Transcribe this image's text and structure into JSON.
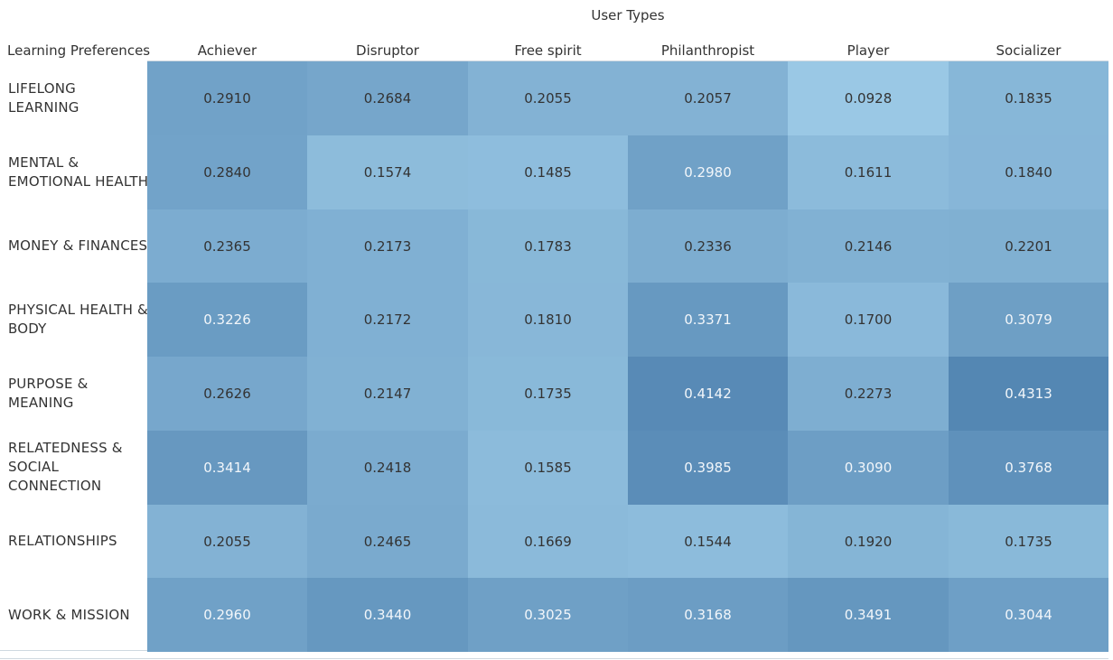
{
  "chart_data": {
    "type": "heatmap",
    "column_title": "User Types",
    "row_title": "Learning Preferences",
    "columns": [
      "Achiever",
      "Disruptor",
      "Free spirit",
      "Philanthropist",
      "Player",
      "Socializer"
    ],
    "rows": [
      "LIFELONG LEARNING",
      "MENTAL & EMOTIONAL HEALTH",
      "MONEY & FINANCES",
      "PHYSICAL HEALTH & BODY",
      "PURPOSE & MEANING",
      "RELATEDNESS & SOCIAL CONNECTION",
      "RELATIONSHIPS",
      "WORK & MISSION"
    ],
    "values": [
      [
        "0.2910",
        "0.2684",
        "0.2055",
        "0.2057",
        "0.0928",
        "0.1835"
      ],
      [
        "0.2840",
        "0.1574",
        "0.1485",
        "0.2980",
        "0.1611",
        "0.1840"
      ],
      [
        "0.2365",
        "0.2173",
        "0.1783",
        "0.2336",
        "0.2146",
        "0.2201"
      ],
      [
        "0.3226",
        "0.2172",
        "0.1810",
        "0.3371",
        "0.1700",
        "0.3079"
      ],
      [
        "0.2626",
        "0.2147",
        "0.1735",
        "0.4142",
        "0.2273",
        "0.4313"
      ],
      [
        "0.3414",
        "0.2418",
        "0.1585",
        "0.3985",
        "0.3090",
        "0.3768"
      ],
      [
        "0.2055",
        "0.2465",
        "0.1669",
        "0.1544",
        "0.1920",
        "0.1735"
      ],
      [
        "0.2960",
        "0.3440",
        "0.3025",
        "0.3168",
        "0.3491",
        "0.3044"
      ]
    ],
    "color_scale": {
      "min_color": "#9ac8e5",
      "max_color": "#5487b3",
      "light_text": "#f2f6fa",
      "dark_text": "#333333"
    }
  }
}
